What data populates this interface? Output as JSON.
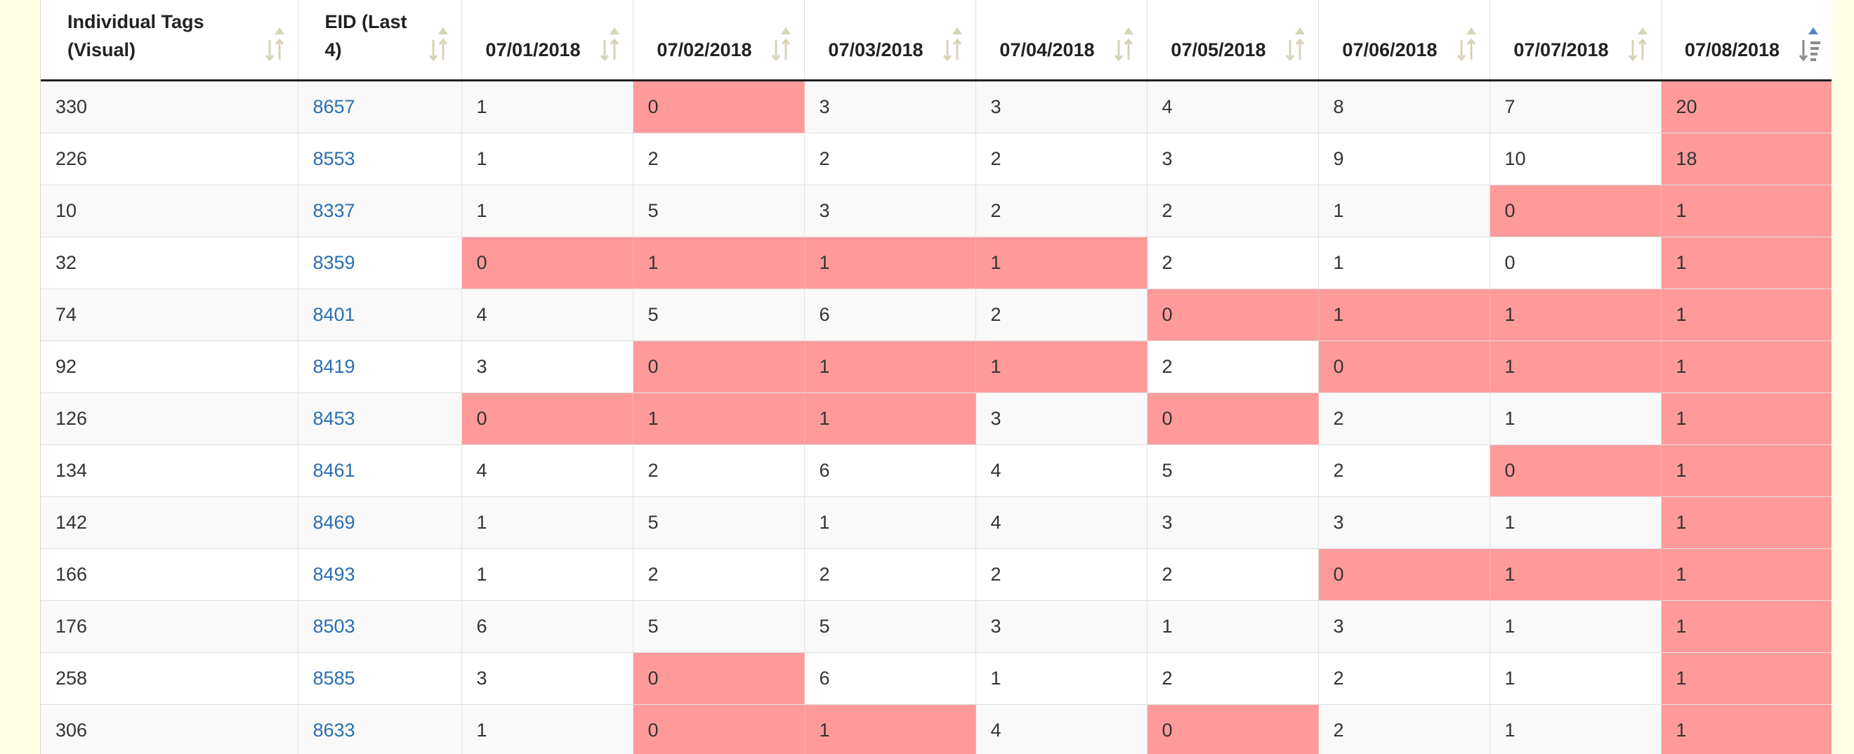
{
  "table": {
    "headers": {
      "tag_line1": "Individual Tags",
      "tag_line2": "(Visual)",
      "eid_line1": "EID (Last",
      "eid_line2": "4)",
      "dates": [
        "07/01/2018",
        "07/02/2018",
        "07/03/2018",
        "07/04/2018",
        "07/05/2018",
        "07/06/2018",
        "07/07/2018",
        "07/08/2018"
      ]
    },
    "sort": {
      "active_column": "07/08/2018",
      "direction": "descending"
    },
    "colors": {
      "highlight": "#ff9a9a",
      "link": "#2a6eb0",
      "sort_active": "#5b7fc9",
      "sort_inactive": "#d8d2b8"
    },
    "rows": [
      {
        "tag": "330",
        "eid": "8657",
        "values": [
          "1",
          "0",
          "3",
          "3",
          "4",
          "8",
          "7",
          "20"
        ],
        "red": [
          false,
          true,
          false,
          false,
          false,
          false,
          false,
          true
        ]
      },
      {
        "tag": "226",
        "eid": "8553",
        "values": [
          "1",
          "2",
          "2",
          "2",
          "3",
          "9",
          "10",
          "18"
        ],
        "red": [
          false,
          false,
          false,
          false,
          false,
          false,
          false,
          true
        ]
      },
      {
        "tag": "10",
        "eid": "8337",
        "values": [
          "1",
          "5",
          "3",
          "2",
          "2",
          "1",
          "0",
          "1"
        ],
        "red": [
          false,
          false,
          false,
          false,
          false,
          false,
          true,
          true
        ]
      },
      {
        "tag": "32",
        "eid": "8359",
        "values": [
          "0",
          "1",
          "1",
          "1",
          "2",
          "1",
          "0",
          "1"
        ],
        "red": [
          true,
          true,
          true,
          true,
          false,
          false,
          false,
          true
        ]
      },
      {
        "tag": "74",
        "eid": "8401",
        "values": [
          "4",
          "5",
          "6",
          "2",
          "0",
          "1",
          "1",
          "1"
        ],
        "red": [
          false,
          false,
          false,
          false,
          true,
          true,
          true,
          true
        ]
      },
      {
        "tag": "92",
        "eid": "8419",
        "values": [
          "3",
          "0",
          "1",
          "1",
          "2",
          "0",
          "1",
          "1"
        ],
        "red": [
          false,
          true,
          true,
          true,
          false,
          true,
          true,
          true
        ]
      },
      {
        "tag": "126",
        "eid": "8453",
        "values": [
          "0",
          "1",
          "1",
          "3",
          "0",
          "2",
          "1",
          "1"
        ],
        "red": [
          true,
          true,
          true,
          false,
          true,
          false,
          false,
          true
        ]
      },
      {
        "tag": "134",
        "eid": "8461",
        "values": [
          "4",
          "2",
          "6",
          "4",
          "5",
          "2",
          "0",
          "1"
        ],
        "red": [
          false,
          false,
          false,
          false,
          false,
          false,
          true,
          true
        ]
      },
      {
        "tag": "142",
        "eid": "8469",
        "values": [
          "1",
          "5",
          "1",
          "4",
          "3",
          "3",
          "1",
          "1"
        ],
        "red": [
          false,
          false,
          false,
          false,
          false,
          false,
          false,
          true
        ]
      },
      {
        "tag": "166",
        "eid": "8493",
        "values": [
          "1",
          "2",
          "2",
          "2",
          "2",
          "0",
          "1",
          "1"
        ],
        "red": [
          false,
          false,
          false,
          false,
          false,
          true,
          true,
          true
        ]
      },
      {
        "tag": "176",
        "eid": "8503",
        "values": [
          "6",
          "5",
          "5",
          "3",
          "1",
          "3",
          "1",
          "1"
        ],
        "red": [
          false,
          false,
          false,
          false,
          false,
          false,
          false,
          true
        ]
      },
      {
        "tag": "258",
        "eid": "8585",
        "values": [
          "3",
          "0",
          "6",
          "1",
          "2",
          "2",
          "1",
          "1"
        ],
        "red": [
          false,
          true,
          false,
          false,
          false,
          false,
          false,
          true
        ]
      },
      {
        "tag": "306",
        "eid": "8633",
        "values": [
          "1",
          "0",
          "1",
          "4",
          "0",
          "2",
          "1",
          "1"
        ],
        "red": [
          false,
          true,
          true,
          false,
          true,
          false,
          false,
          true
        ]
      }
    ]
  }
}
